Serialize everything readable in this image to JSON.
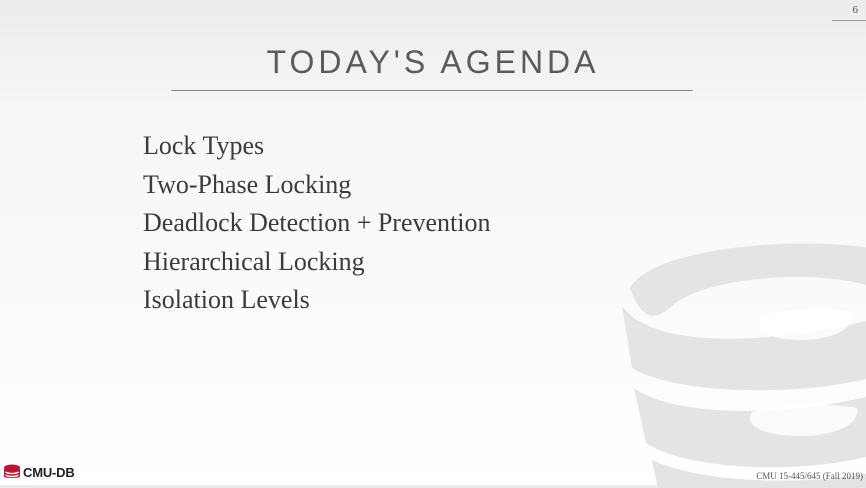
{
  "slide": {
    "page_number": "6",
    "title": "TODAY'S AGENDA",
    "agenda_items": [
      "Lock Types",
      "Two-Phase Locking",
      "Deadlock Detection + Prevention",
      "Hierarchical Locking",
      "Isolation Levels"
    ]
  },
  "footer": {
    "logo_text": "CMU-DB",
    "course": "CMU 15-445/645 (Fall 2019)"
  },
  "colors": {
    "logo_red": "#c41230",
    "watermark": "#e3e3e3",
    "title_text": "#5a5a5a",
    "body_text": "#3b3b3b"
  },
  "icons": {
    "logo_icon": "database-icon",
    "watermark_icon": "database-icon"
  }
}
